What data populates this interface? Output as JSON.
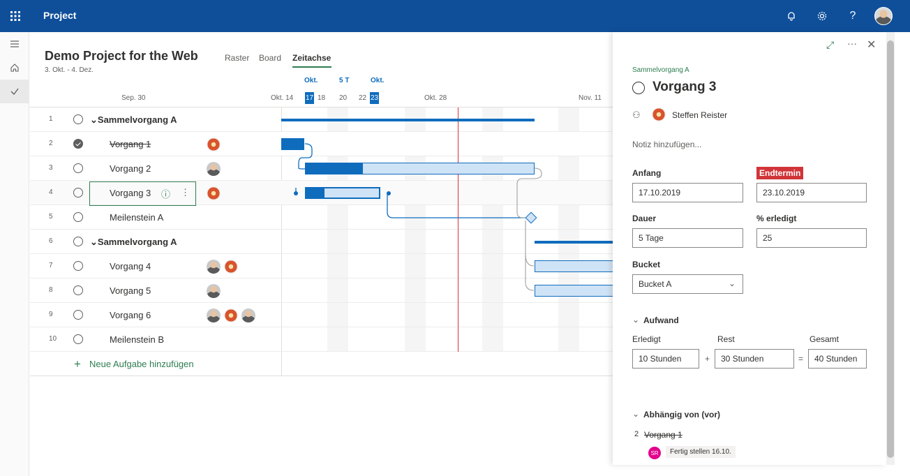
{
  "app": {
    "title": "Project"
  },
  "topbar": {
    "icons": [
      "bell-icon",
      "gear-icon",
      "help-icon",
      "avatar"
    ]
  },
  "nav": {
    "items": [
      "menu-icon",
      "home-icon",
      "check-icon"
    ]
  },
  "project": {
    "title": "Demo Project for the Web",
    "dates": "3. Okt. - 4. Dez."
  },
  "tabs": [
    "Raster",
    "Board",
    "Zeitachse"
  ],
  "active_tab": "Zeitachse",
  "timeline": {
    "dates": [
      "Sep. 30",
      "Okt. 14",
      "Okt. 28",
      "Nov. 11"
    ],
    "selection": {
      "start_label": "Okt.",
      "duration_label": "5 T",
      "end_label": "Okt."
    },
    "days": [
      "17",
      "18",
      "20",
      "22",
      "23"
    ]
  },
  "tasks": [
    {
      "num": "1",
      "name": "Sammelvorgang A",
      "summary": true
    },
    {
      "num": "2",
      "name": "Vorgang 1",
      "done": true
    },
    {
      "num": "3",
      "name": "Vorgang 2"
    },
    {
      "num": "4",
      "name": "Vorgang 3",
      "selected": true
    },
    {
      "num": "5",
      "name": "Meilenstein A"
    },
    {
      "num": "6",
      "name": "Sammelvorgang A",
      "summary": true
    },
    {
      "num": "7",
      "name": "Vorgang 4"
    },
    {
      "num": "8",
      "name": "Vorgang 5"
    },
    {
      "num": "9",
      "name": "Vorgang 6"
    },
    {
      "num": "10",
      "name": "Meilenstein B"
    }
  ],
  "new_task": "Neue Aufgabe hinzufügen",
  "row_actions": {
    "info": "ⓘ",
    "more": "⋮"
  },
  "details": {
    "parent": "Sammelvorgang A",
    "task_title": "Vorgang 3",
    "assignee": "Steffen Reister",
    "note_placeholder": "Notiz hinzufügen...",
    "start_label": "Anfang",
    "start_value": "17.10.2019",
    "end_label": "Endtermin",
    "end_value": "23.10.2019",
    "duration_label": "Dauer",
    "duration_value": "5 Tage",
    "percent_label": "% erledigt",
    "percent_value": "25",
    "bucket_label": "Bucket",
    "bucket_value": "Bucket A",
    "effort_label": "Aufwand",
    "done_label": "Erledigt",
    "rest_label": "Rest",
    "total_label": "Gesamt",
    "done_value": "10 Stunden",
    "rest_value": "30 Stunden",
    "total_value": "40 Stunden",
    "plus": "+",
    "equals": "=",
    "dependency_label": "Abhängig von (vor)",
    "dep_num": "2",
    "dep_name": "Vorgang 1",
    "dep_initials": "SR",
    "dep_status": "Fertig stellen 16.10."
  },
  "colors": {
    "brand": "#0f4f9a",
    "accent": "#0f6cbd",
    "green": "#2e7d4f",
    "red": "#d13438",
    "today": "#d13438"
  }
}
